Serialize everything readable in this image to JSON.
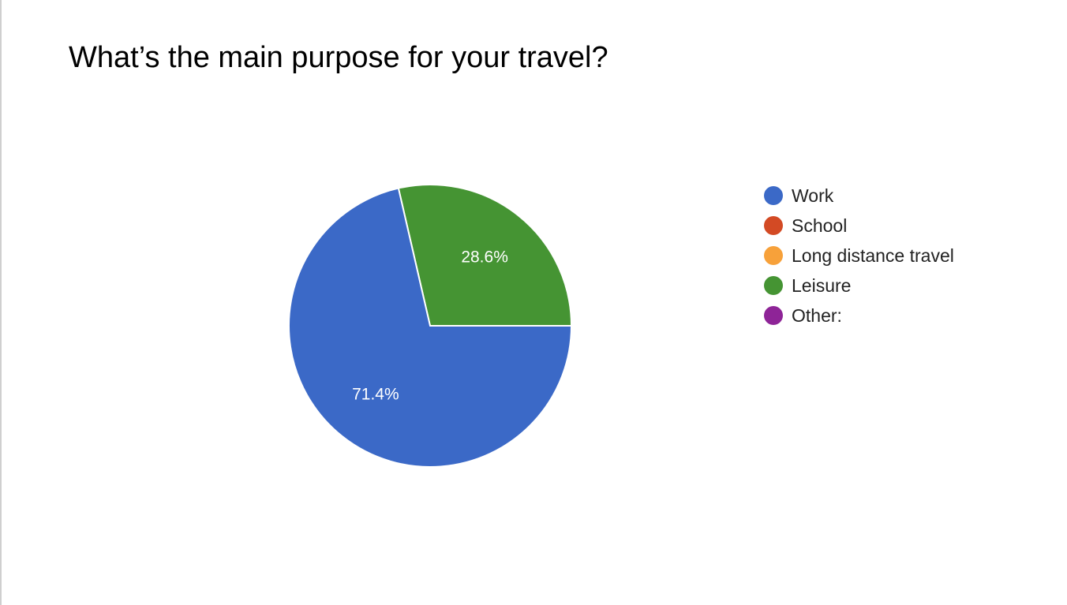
{
  "chart_data": {
    "type": "pie",
    "title": "What’s the main purpose for your travel?",
    "legend_position": "right",
    "series": [
      {
        "name": "Work",
        "value": 71.4,
        "label": "71.4%",
        "color": "#3b69c7"
      },
      {
        "name": "School",
        "value": 0,
        "label": "",
        "color": "#d34a24"
      },
      {
        "name": "Long distance travel",
        "value": 0,
        "label": "",
        "color": "#f7a13a"
      },
      {
        "name": "Leisure",
        "value": 28.6,
        "label": "28.6%",
        "color": "#459433"
      },
      {
        "name": "Other:",
        "value": 0,
        "label": "",
        "color": "#8e2497"
      }
    ]
  }
}
